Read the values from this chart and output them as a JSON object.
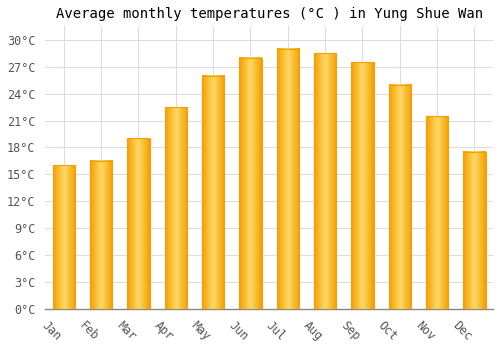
{
  "title": "Average monthly temperatures (°C ) in Yung Shue Wan",
  "months": [
    "Jan",
    "Feb",
    "Mar",
    "Apr",
    "May",
    "Jun",
    "Jul",
    "Aug",
    "Sep",
    "Oct",
    "Nov",
    "Dec"
  ],
  "values": [
    16.0,
    16.5,
    19.0,
    22.5,
    26.0,
    28.0,
    29.0,
    28.5,
    27.5,
    25.0,
    21.5,
    17.5
  ],
  "bar_color_center": "#FFD966",
  "bar_color_edge": "#F5A000",
  "background_color": "#FFFFFF",
  "grid_color": "#DDDDDD",
  "yticks": [
    0,
    3,
    6,
    9,
    12,
    15,
    18,
    21,
    24,
    27,
    30
  ],
  "ylim": [
    0,
    31.5
  ],
  "title_fontsize": 10,
  "tick_fontsize": 8.5,
  "font_family": "monospace",
  "bar_width": 0.6,
  "xlabel_rotation": -45
}
